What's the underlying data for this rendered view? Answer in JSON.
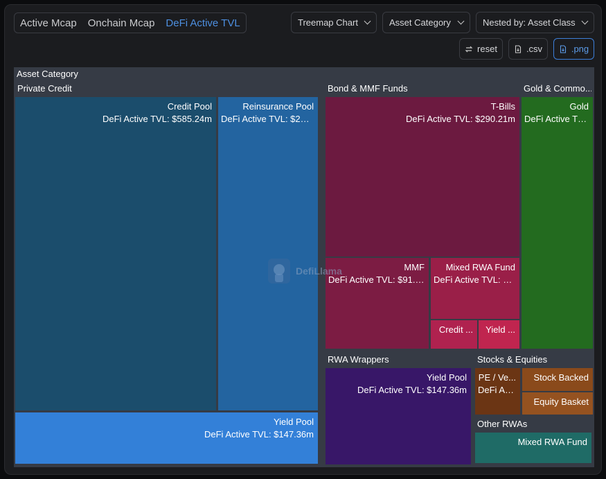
{
  "tabs": [
    {
      "label": "Active Mcap",
      "active": false
    },
    {
      "label": "Onchain Mcap",
      "active": false
    },
    {
      "label": "DeFi Active TVL",
      "active": true
    }
  ],
  "controls": {
    "chart_type": "Treemap Chart",
    "category": "Asset Category",
    "nested_by": "Nested by: Asset Class"
  },
  "buttons": {
    "reset": "reset",
    "csv": ".csv",
    "png": ".png"
  },
  "watermark": "DefiLlama",
  "chart_data": {
    "type": "treemap",
    "title": "Asset Category",
    "metric_label": "DeFi Active TVL",
    "groups": [
      {
        "name": "Private Credit",
        "color": "#1e4d6e",
        "children": [
          {
            "name": "Credit Pool",
            "label": "DeFi Active TVL: $585.24m",
            "color": "#1b4d6c"
          },
          {
            "name": "Reinsurance Pool",
            "label": "DeFi Active TVL: $292...",
            "color": "#2364a0"
          },
          {
            "name": "Yield Pool",
            "label": "DeFi Active TVL: $147.36m",
            "color": "#3380d8"
          }
        ]
      },
      {
        "name": "Bond & MMF Funds",
        "color": "#7a1a45",
        "children": [
          {
            "name": "T-Bills",
            "label": "DeFi Active TVL: $290.21m",
            "color": "#6c1a40"
          },
          {
            "name": "MMF",
            "label": "DeFi Active TVL: $91.1...",
            "color": "#7c1c43"
          },
          {
            "name": "Mixed RWA Fund",
            "label": "DeFi Active TVL: $...",
            "color": "#9a1f48"
          },
          {
            "name": "Credit ...",
            "label": "",
            "color": "#b0224f"
          },
          {
            "name": "Yield ...",
            "label": "",
            "color": "#c0254f"
          }
        ]
      },
      {
        "name": "Gold & Commo...",
        "color": "#236b1e",
        "children": [
          {
            "name": "Gold",
            "label": "DeFi Active TV...",
            "color": "#236b1f"
          }
        ]
      },
      {
        "name": "RWA Wrappers",
        "color": "#3b1a6b",
        "children": [
          {
            "name": "Yield Pool",
            "label": "DeFi Active TVL: $147.36m",
            "color": "#381768"
          }
        ]
      },
      {
        "name": "Stocks & Equities",
        "color": "#7a4015",
        "children": [
          {
            "name": "PE / Ve...",
            "label": "DeFi Ac...",
            "color": "#6b3514"
          },
          {
            "name": "Stock Backed",
            "label": "",
            "color": "#8a4a1b"
          },
          {
            "name": "Equity Basket",
            "label": "",
            "color": "#955220"
          }
        ]
      },
      {
        "name": "Other RWAs",
        "color": "#1e6b66",
        "children": [
          {
            "name": "Mixed RWA Fund",
            "label": "",
            "color": "#1f6b66"
          }
        ]
      }
    ]
  }
}
